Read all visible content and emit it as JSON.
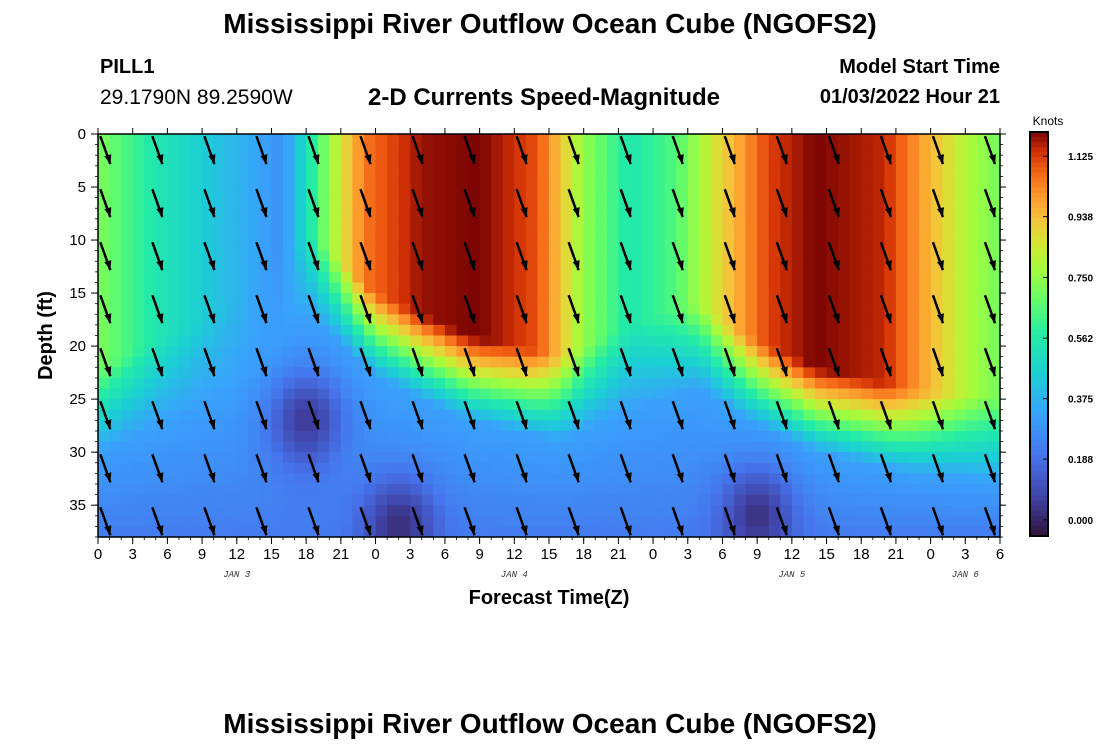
{
  "header": {
    "title": "Mississippi River Outflow Ocean Cube (NGOFS2)",
    "station_name": "PILL1",
    "station_coords": "29.1790N  89.2590W",
    "subtitle": "2-D Currents Speed-Magnitude",
    "model_start_label": "Model Start Time",
    "model_start_value": "01/03/2022 Hour 21"
  },
  "footer": {
    "title": "Mississippi River Outflow Ocean Cube (NGOFS2)"
  },
  "chart_data": {
    "type": "heatmap",
    "title": "2-D Currents Speed-Magnitude",
    "xlabel": "Forecast Time(Z)",
    "ylabel": "Depth (ft)",
    "x_ticks": [
      "0",
      "3",
      "6",
      "9",
      "12",
      "15",
      "18",
      "21",
      "0",
      "3",
      "6",
      "9",
      "12",
      "15",
      "18",
      "21",
      "0",
      "3",
      "6",
      "9",
      "12",
      "15",
      "18",
      "21",
      "0",
      "3",
      "6"
    ],
    "x_range_hours": [
      0,
      78
    ],
    "date_labels": [
      {
        "label": "JAN 3",
        "hour": 12
      },
      {
        "label": "JAN 4",
        "hour": 36
      },
      {
        "label": "JAN 5",
        "hour": 60
      },
      {
        "label": "JAN 6",
        "hour": 75
      }
    ],
    "y_ticks": [
      0,
      5,
      10,
      15,
      20,
      25,
      30,
      35
    ],
    "y_range_ft": [
      0,
      38
    ],
    "colorbar": {
      "unit": "Knots",
      "ticks": [
        "1.125",
        "0.938",
        "0.750",
        "0.562",
        "0.375",
        "0.188",
        "0.000"
      ],
      "range": [
        -0.05,
        1.2
      ]
    },
    "speed_model": {
      "surface_phases": [
        {
          "hour": 0,
          "speed": 0.72
        },
        {
          "hour": 5,
          "speed": 0.55
        },
        {
          "hour": 11,
          "speed": 0.4
        },
        {
          "hour": 16,
          "speed": 0.28
        },
        {
          "hour": 20,
          "speed": 0.75
        },
        {
          "hour": 23,
          "speed": 1.05
        },
        {
          "hour": 28,
          "speed": 1.18
        },
        {
          "hour": 33,
          "speed": 1.2
        },
        {
          "hour": 38,
          "speed": 1.1
        },
        {
          "hour": 42,
          "speed": 0.75
        },
        {
          "hour": 46,
          "speed": 0.55
        },
        {
          "hour": 50,
          "speed": 0.65
        },
        {
          "hour": 54,
          "speed": 0.9
        },
        {
          "hour": 58,
          "speed": 1.12
        },
        {
          "hour": 62,
          "speed": 1.2
        },
        {
          "hour": 68,
          "speed": 1.15
        },
        {
          "hour": 72,
          "speed": 0.95
        },
        {
          "hour": 75,
          "speed": 0.8
        },
        {
          "hour": 78,
          "speed": 0.7
        }
      ],
      "bottom_layer_depth_ft": [
        {
          "hour": 0,
          "depth": 30
        },
        {
          "hour": 12,
          "depth": 24
        },
        {
          "hour": 18,
          "depth": 17
        },
        {
          "hour": 24,
          "depth": 23
        },
        {
          "hour": 32,
          "depth": 27
        },
        {
          "hour": 40,
          "depth": 29
        },
        {
          "hour": 46,
          "depth": 26
        },
        {
          "hour": 52,
          "depth": 24
        },
        {
          "hour": 56,
          "depth": 27
        },
        {
          "hour": 62,
          "depth": 30
        },
        {
          "hour": 70,
          "depth": 32
        },
        {
          "hour": 78,
          "depth": 33
        }
      ],
      "slow_pockets": [
        {
          "hour": 18,
          "depth": 27,
          "speed": 0.05
        },
        {
          "hour": 26,
          "depth": 37,
          "speed": 0.02
        },
        {
          "hour": 57,
          "depth": 36,
          "speed": 0.03
        }
      ]
    },
    "vector_columns_hours": [
      0,
      4.5,
      9,
      13.5,
      18,
      22.5,
      27,
      31.5,
      36,
      40.5,
      45,
      49.5,
      54,
      58.5,
      63,
      67.5,
      72,
      76.5
    ],
    "vector_rows_ft": [
      1,
      6,
      11,
      16,
      21,
      26,
      31,
      36
    ]
  }
}
